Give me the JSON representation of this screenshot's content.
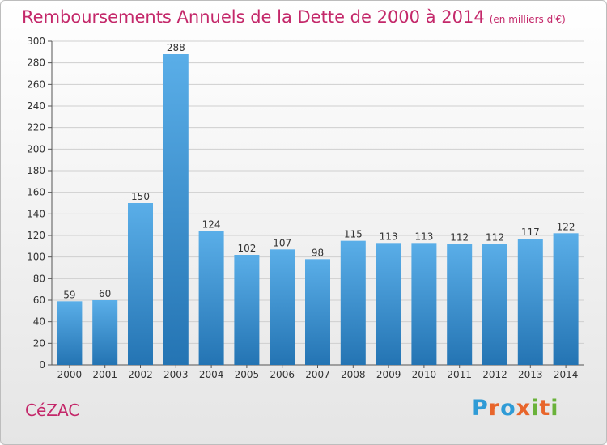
{
  "title": "Remboursements Annuels de la Dette de 2000 à 2014",
  "title_unit": "(en milliers d'€)",
  "city": "CéZAC",
  "logo": {
    "text": "Proxiti",
    "colors": [
      "#2f9bd6",
      "#e8652b",
      "#2f9bd6",
      "#e8652b",
      "#6ab23a",
      "#e8652b",
      "#6ab23a"
    ]
  },
  "colors": {
    "title": "#c4286a",
    "bar_top": "#5aaee8",
    "bar_bottom": "#2474b3"
  },
  "chart_data": {
    "type": "bar",
    "title": "Remboursements Annuels de la Dette de 2000 à 2014",
    "xlabel": "",
    "ylabel": "",
    "categories": [
      "2000",
      "2001",
      "2002",
      "2003",
      "2004",
      "2005",
      "2006",
      "2007",
      "2008",
      "2009",
      "2010",
      "2011",
      "2012",
      "2013",
      "2014"
    ],
    "values": [
      59,
      60,
      150,
      288,
      124,
      102,
      107,
      98,
      115,
      113,
      113,
      112,
      112,
      117,
      122
    ],
    "ylim": [
      0,
      300
    ],
    "yticks": [
      0,
      20,
      40,
      60,
      80,
      100,
      120,
      140,
      160,
      180,
      200,
      220,
      240,
      260,
      280,
      300
    ],
    "grid": true,
    "legend": "none"
  }
}
